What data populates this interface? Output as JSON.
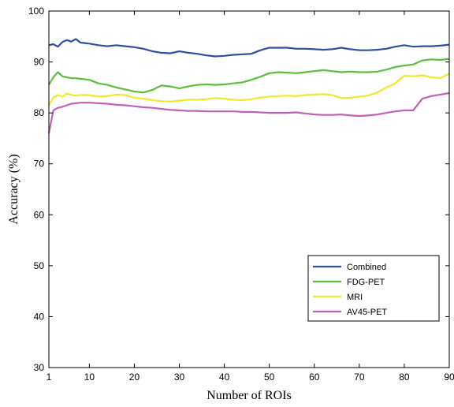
{
  "chart_data": {
    "type": "line",
    "xlabel": "Number of ROIs",
    "ylabel": "Accuracy (%)",
    "xlim": [
      1,
      90
    ],
    "ylim": [
      30,
      100
    ],
    "xticks": [
      1,
      10,
      20,
      30,
      40,
      50,
      60,
      70,
      80,
      90
    ],
    "yticks": [
      30,
      40,
      50,
      60,
      70,
      80,
      90,
      100
    ],
    "grid": false,
    "legend_position": "lower-right",
    "x": [
      1,
      2,
      3,
      4,
      5,
      6,
      7,
      8,
      10,
      12,
      14,
      16,
      18,
      20,
      22,
      24,
      26,
      28,
      30,
      32,
      34,
      36,
      38,
      40,
      42,
      44,
      46,
      48,
      50,
      52,
      54,
      56,
      58,
      60,
      62,
      64,
      66,
      68,
      70,
      72,
      74,
      76,
      78,
      80,
      82,
      84,
      86,
      88,
      90
    ],
    "series": [
      {
        "name": "Combined",
        "color": "#2e4fa3",
        "values": [
          93.3,
          93.5,
          93.0,
          93.9,
          94.3,
          94.0,
          94.5,
          93.8,
          93.6,
          93.3,
          93.1,
          93.3,
          93.1,
          92.9,
          92.6,
          92.1,
          91.8,
          91.7,
          92.1,
          91.8,
          91.6,
          91.3,
          91.1,
          91.2,
          91.4,
          91.5,
          91.6,
          92.3,
          92.8,
          92.8,
          92.8,
          92.6,
          92.6,
          92.5,
          92.4,
          92.5,
          92.8,
          92.5,
          92.3,
          92.3,
          92.4,
          92.6,
          93.0,
          93.3,
          93.0,
          93.1,
          93.1,
          93.2,
          93.4
        ]
      },
      {
        "name": "FDG-PET",
        "color": "#5cbf3c",
        "values": [
          85.5,
          87.0,
          88.0,
          87.2,
          87.0,
          86.8,
          86.8,
          86.7,
          86.5,
          85.8,
          85.5,
          85.0,
          84.6,
          84.2,
          84.0,
          84.5,
          85.4,
          85.2,
          84.8,
          85.2,
          85.5,
          85.6,
          85.5,
          85.6,
          85.8,
          86.0,
          86.5,
          87.1,
          87.8,
          88.0,
          87.9,
          87.8,
          88.0,
          88.2,
          88.4,
          88.2,
          88.0,
          88.1,
          88.0,
          88.0,
          88.1,
          88.5,
          89.0,
          89.3,
          89.5,
          90.3,
          90.5,
          90.4,
          90.6
        ]
      },
      {
        "name": "MRI",
        "color": "#f0e82a",
        "values": [
          81.5,
          83.0,
          83.5,
          83.2,
          83.8,
          83.5,
          83.4,
          83.5,
          83.5,
          83.2,
          83.3,
          83.6,
          83.5,
          83.0,
          82.8,
          82.5,
          82.3,
          82.2,
          82.4,
          82.6,
          82.6,
          82.7,
          82.9,
          82.8,
          82.6,
          82.5,
          82.7,
          83.0,
          83.2,
          83.3,
          83.4,
          83.3,
          83.5,
          83.6,
          83.7,
          83.5,
          82.9,
          83.0,
          83.2,
          83.4,
          84.0,
          85.0,
          85.8,
          87.3,
          87.2,
          87.4,
          87.0,
          86.8,
          87.7
        ]
      },
      {
        "name": "AV45-PET",
        "color": "#c25fb6",
        "values": [
          76.0,
          80.5,
          81.0,
          81.2,
          81.5,
          81.8,
          81.9,
          82.0,
          82.0,
          81.9,
          81.8,
          81.6,
          81.5,
          81.3,
          81.1,
          81.0,
          80.8,
          80.6,
          80.5,
          80.4,
          80.4,
          80.3,
          80.3,
          80.3,
          80.3,
          80.2,
          80.2,
          80.1,
          80.0,
          80.0,
          80.0,
          80.1,
          79.9,
          79.7,
          79.6,
          79.6,
          79.7,
          79.5,
          79.4,
          79.5,
          79.7,
          80.0,
          80.3,
          80.5,
          80.5,
          82.8,
          83.3,
          83.6,
          83.9
        ]
      }
    ]
  }
}
